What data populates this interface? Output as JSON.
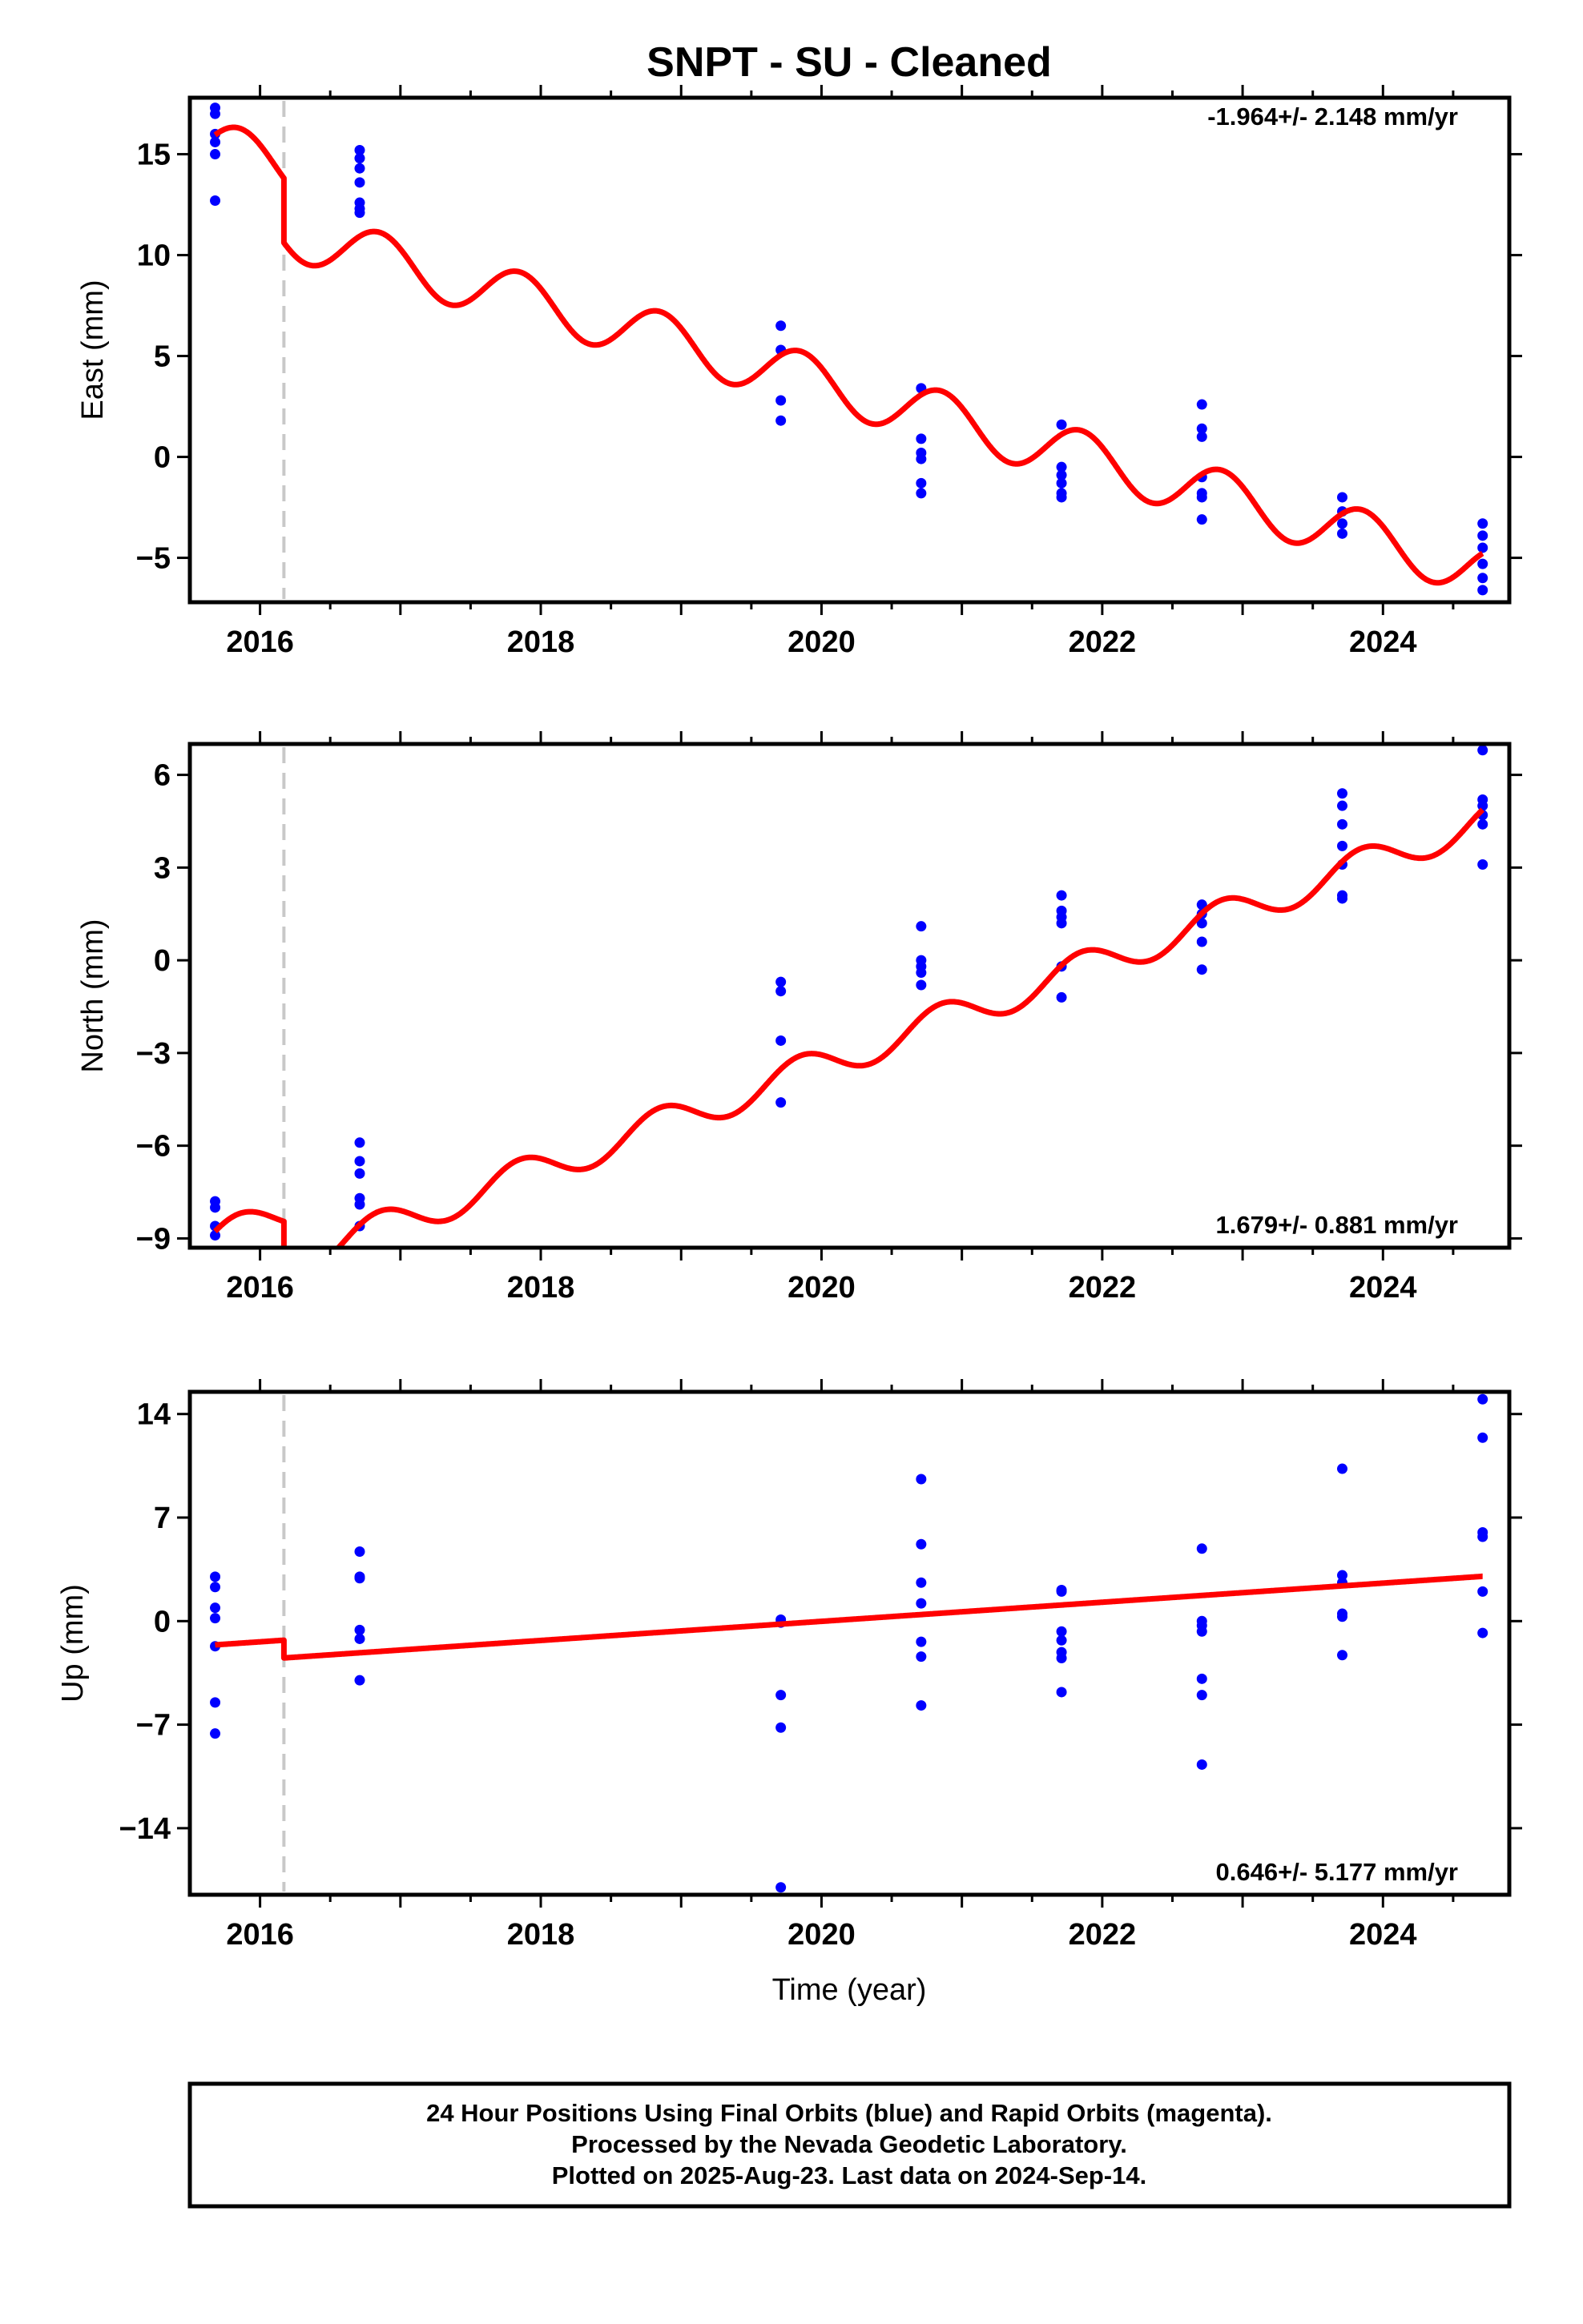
{
  "title": "SNPT  - SU - Cleaned",
  "xlabel": "Time (year)",
  "footer": {
    "line1": "24 Hour Positions Using Final Orbits (blue) and Rapid Orbits (magenta).",
    "line2": "Processed by the Nevada Geodetic Laboratory.",
    "line3": "Plotted on 2025-Aug-23. Last data on 2024-Sep-14."
  },
  "colors": {
    "data": "#0000ff",
    "model": "#ff0000",
    "break": "#c8c8c8",
    "frame": "#000000"
  },
  "chart_data": [
    {
      "type": "scatter",
      "panel": "east",
      "ylabel": "East (mm)",
      "rate": "-1.964+/- 2.148 mm/yr",
      "xlim": [
        2015.5,
        2024.9
      ],
      "ylim": [
        -7.2,
        17.8
      ],
      "xticks": [
        2016,
        2018,
        2020,
        2022,
        2024
      ],
      "yticks": [
        -5,
        0,
        5,
        10,
        15
      ],
      "ytick_labels": [
        "−5",
        "0",
        "5",
        "10",
        "15"
      ],
      "break_epoch": 2016.17,
      "points": [
        [
          2015.68,
          17.3
        ],
        [
          2015.68,
          17.0
        ],
        [
          2015.68,
          16.0
        ],
        [
          2015.68,
          15.6
        ],
        [
          2015.68,
          15.0
        ],
        [
          2015.68,
          12.7
        ],
        [
          2016.71,
          15.2
        ],
        [
          2016.71,
          14.8
        ],
        [
          2016.71,
          14.3
        ],
        [
          2016.71,
          13.6
        ],
        [
          2016.71,
          12.6
        ],
        [
          2016.71,
          12.3
        ],
        [
          2016.71,
          12.1
        ],
        [
          2019.71,
          6.5
        ],
        [
          2019.71,
          5.3
        ],
        [
          2019.71,
          2.8
        ],
        [
          2019.71,
          1.8
        ],
        [
          2020.71,
          3.4
        ],
        [
          2020.71,
          0.9
        ],
        [
          2020.71,
          0.2
        ],
        [
          2020.71,
          -0.1
        ],
        [
          2020.71,
          -1.3
        ],
        [
          2020.71,
          -1.8
        ],
        [
          2021.71,
          1.6
        ],
        [
          2021.71,
          -0.5
        ],
        [
          2021.71,
          -0.9
        ],
        [
          2021.71,
          -1.3
        ],
        [
          2021.71,
          -1.8
        ],
        [
          2021.71,
          -2.0
        ],
        [
          2022.71,
          2.6
        ],
        [
          2022.71,
          1.4
        ],
        [
          2022.71,
          1.0
        ],
        [
          2022.71,
          -1.0
        ],
        [
          2022.71,
          -1.8
        ],
        [
          2022.71,
          -2.0
        ],
        [
          2022.71,
          -3.1
        ],
        [
          2023.71,
          -2.0
        ],
        [
          2023.71,
          -2.7
        ],
        [
          2023.71,
          -3.3
        ],
        [
          2023.71,
          -3.8
        ],
        [
          2024.71,
          -3.3
        ],
        [
          2024.71,
          -3.9
        ],
        [
          2024.71,
          -4.5
        ],
        [
          2024.71,
          -5.3
        ],
        [
          2024.71,
          -6.0
        ],
        [
          2024.71,
          -6.6
        ]
      ],
      "model": {
        "rate_mm_per_yr": -1.964,
        "offset_at_2016": 14.7,
        "step_at_break": -3.2,
        "annual_amplitude": 1.3,
        "annual_phase_year": 2015.85
      }
    },
    {
      "type": "scatter",
      "panel": "north",
      "ylabel": "North (mm)",
      "rate": "1.679+/- 0.881 mm/yr",
      "xlim": [
        2015.5,
        2024.9
      ],
      "ylim": [
        -9.3,
        7.0
      ],
      "xticks": [
        2016,
        2018,
        2020,
        2022,
        2024
      ],
      "yticks": [
        -9,
        -6,
        -3,
        0,
        3,
        6
      ],
      "ytick_labels": [
        "−9",
        "−6",
        "−3",
        "0",
        "3",
        "6"
      ],
      "break_epoch": 2016.17,
      "points": [
        [
          2015.68,
          -7.8
        ],
        [
          2015.68,
          -8.0
        ],
        [
          2015.68,
          -8.6
        ],
        [
          2015.68,
          -8.9
        ],
        [
          2016.71,
          -5.9
        ],
        [
          2016.71,
          -6.5
        ],
        [
          2016.71,
          -6.9
        ],
        [
          2016.71,
          -7.7
        ],
        [
          2016.71,
          -7.9
        ],
        [
          2016.71,
          -8.6
        ],
        [
          2019.71,
          -0.7
        ],
        [
          2019.71,
          -1.0
        ],
        [
          2019.71,
          -2.6
        ],
        [
          2019.71,
          -4.6
        ],
        [
          2020.71,
          1.1
        ],
        [
          2020.71,
          0.0
        ],
        [
          2020.71,
          -0.2
        ],
        [
          2020.71,
          -0.4
        ],
        [
          2020.71,
          -0.8
        ],
        [
          2021.71,
          2.1
        ],
        [
          2021.71,
          1.6
        ],
        [
          2021.71,
          1.4
        ],
        [
          2021.71,
          1.2
        ],
        [
          2021.71,
          -0.2
        ],
        [
          2021.71,
          -1.2
        ],
        [
          2022.71,
          1.8
        ],
        [
          2022.71,
          1.5
        ],
        [
          2022.71,
          1.2
        ],
        [
          2022.71,
          0.6
        ],
        [
          2022.71,
          -0.3
        ],
        [
          2023.71,
          5.4
        ],
        [
          2023.71,
          5.0
        ],
        [
          2023.71,
          4.4
        ],
        [
          2023.71,
          3.7
        ],
        [
          2023.71,
          3.1
        ],
        [
          2023.71,
          2.1
        ],
        [
          2023.71,
          2.0
        ],
        [
          2024.71,
          6.8
        ],
        [
          2024.71,
          5.2
        ],
        [
          2024.71,
          5.0
        ],
        [
          2024.71,
          4.7
        ],
        [
          2024.71,
          4.4
        ],
        [
          2024.71,
          3.1
        ]
      ],
      "model": {
        "rate_mm_per_yr": 1.679,
        "offset_at_2016": -8.5,
        "step_at_break": -1.6,
        "annual_amplitude": 0.55,
        "annual_phase_year": 2015.85
      }
    },
    {
      "type": "scatter",
      "panel": "up",
      "ylabel": "Up (mm)",
      "rate": "0.646+/- 5.177 mm/yr",
      "xlim": [
        2015.5,
        2024.9
      ],
      "ylim": [
        -18.5,
        15.5
      ],
      "xticks": [
        2016,
        2018,
        2020,
        2022,
        2024
      ],
      "yticks": [
        -14,
        -7,
        0,
        7,
        14
      ],
      "ytick_labels": [
        "−14",
        "−7",
        "0",
        "7",
        "14"
      ],
      "break_epoch": 2016.17,
      "points": [
        [
          2015.68,
          3.0
        ],
        [
          2015.68,
          2.3
        ],
        [
          2015.68,
          0.9
        ],
        [
          2015.68,
          0.2
        ],
        [
          2015.68,
          -1.7
        ],
        [
          2015.68,
          -5.5
        ],
        [
          2015.68,
          -7.6
        ],
        [
          2016.71,
          4.7
        ],
        [
          2016.71,
          3.0
        ],
        [
          2016.71,
          2.9
        ],
        [
          2016.71,
          -0.6
        ],
        [
          2016.71,
          -1.2
        ],
        [
          2016.71,
          -4.0
        ],
        [
          2019.71,
          0.1
        ],
        [
          2019.71,
          -0.1
        ],
        [
          2019.71,
          -5.0
        ],
        [
          2019.71,
          -7.2
        ],
        [
          2019.71,
          -18.0
        ],
        [
          2020.71,
          9.6
        ],
        [
          2020.71,
          5.2
        ],
        [
          2020.71,
          2.6
        ],
        [
          2020.71,
          1.2
        ],
        [
          2020.71,
          -1.4
        ],
        [
          2020.71,
          -2.4
        ],
        [
          2020.71,
          -5.7
        ],
        [
          2021.71,
          2.1
        ],
        [
          2021.71,
          2.0
        ],
        [
          2021.71,
          -0.7
        ],
        [
          2021.71,
          -1.3
        ],
        [
          2021.71,
          -2.1
        ],
        [
          2021.71,
          -2.5
        ],
        [
          2021.71,
          -4.8
        ],
        [
          2022.71,
          4.9
        ],
        [
          2022.71,
          0.0
        ],
        [
          2022.71,
          -0.3
        ],
        [
          2022.71,
          -0.7
        ],
        [
          2022.71,
          -3.9
        ],
        [
          2022.71,
          -5.0
        ],
        [
          2022.71,
          -9.7
        ],
        [
          2023.71,
          10.3
        ],
        [
          2023.71,
          3.1
        ],
        [
          2023.71,
          2.6
        ],
        [
          2023.71,
          0.5
        ],
        [
          2023.71,
          0.3
        ],
        [
          2023.71,
          -2.3
        ],
        [
          2024.71,
          15.0
        ],
        [
          2024.71,
          12.4
        ],
        [
          2024.71,
          6.0
        ],
        [
          2024.71,
          5.7
        ],
        [
          2024.71,
          2.0
        ],
        [
          2024.71,
          -0.8
        ]
      ],
      "model": {
        "rate_mm_per_yr": 0.646,
        "offset_at_2016": -1.4,
        "step_at_break": -1.2,
        "annual_amplitude": 0.0,
        "annual_phase_year": 2015.85
      }
    }
  ]
}
